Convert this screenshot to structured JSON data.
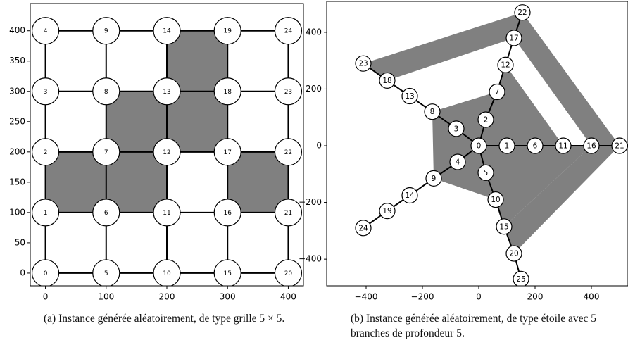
{
  "chart_data": [
    {
      "type": "graph",
      "caption": "(a) Instance générée aléatoirement, de type grille 5 × 5.",
      "xlim": [
        -25,
        425
      ],
      "ylim": [
        -21,
        445
      ],
      "xticks": [
        0,
        100,
        200,
        300,
        400
      ],
      "yticks": [
        0,
        50,
        100,
        150,
        200,
        250,
        300,
        350,
        400
      ],
      "node_color": "#ffffff",
      "edge_color": "#000000",
      "fill_color": "#808080",
      "nodes": [
        {
          "label": "0",
          "x": 0,
          "y": 0
        },
        {
          "label": "1",
          "x": 0,
          "y": 100
        },
        {
          "label": "2",
          "x": 0,
          "y": 200
        },
        {
          "label": "3",
          "x": 0,
          "y": 300
        },
        {
          "label": "4",
          "x": 0,
          "y": 400
        },
        {
          "label": "5",
          "x": 100,
          "y": 0
        },
        {
          "label": "6",
          "x": 100,
          "y": 100
        },
        {
          "label": "7",
          "x": 100,
          "y": 200
        },
        {
          "label": "8",
          "x": 100,
          "y": 300
        },
        {
          "label": "9",
          "x": 100,
          "y": 400
        },
        {
          "label": "10",
          "x": 200,
          "y": 0
        },
        {
          "label": "11",
          "x": 200,
          "y": 100
        },
        {
          "label": "12",
          "x": 200,
          "y": 200
        },
        {
          "label": "13",
          "x": 200,
          "y": 300
        },
        {
          "label": "14",
          "x": 200,
          "y": 400
        },
        {
          "label": "15",
          "x": 300,
          "y": 0
        },
        {
          "label": "16",
          "x": 300,
          "y": 100
        },
        {
          "label": "17",
          "x": 300,
          "y": 200
        },
        {
          "label": "18",
          "x": 300,
          "y": 300
        },
        {
          "label": "19",
          "x": 300,
          "y": 400
        },
        {
          "label": "20",
          "x": 400,
          "y": 0
        },
        {
          "label": "21",
          "x": 400,
          "y": 100
        },
        {
          "label": "22",
          "x": 400,
          "y": 200
        },
        {
          "label": "23",
          "x": 400,
          "y": 300
        },
        {
          "label": "24",
          "x": 400,
          "y": 400
        }
      ],
      "edges": [
        [
          0,
          1
        ],
        [
          1,
          2
        ],
        [
          2,
          3
        ],
        [
          3,
          4
        ],
        [
          5,
          6
        ],
        [
          6,
          7
        ],
        [
          7,
          8
        ],
        [
          8,
          9
        ],
        [
          10,
          11
        ],
        [
          11,
          12
        ],
        [
          12,
          13
        ],
        [
          13,
          14
        ],
        [
          15,
          16
        ],
        [
          16,
          17
        ],
        [
          17,
          18
        ],
        [
          18,
          19
        ],
        [
          20,
          21
        ],
        [
          21,
          22
        ],
        [
          22,
          23
        ],
        [
          23,
          24
        ],
        [
          0,
          5
        ],
        [
          5,
          10
        ],
        [
          10,
          15
        ],
        [
          15,
          20
        ],
        [
          1,
          6
        ],
        [
          6,
          11
        ],
        [
          11,
          16
        ],
        [
          16,
          21
        ],
        [
          2,
          7
        ],
        [
          7,
          12
        ],
        [
          12,
          17
        ],
        [
          17,
          22
        ],
        [
          3,
          8
        ],
        [
          8,
          13
        ],
        [
          13,
          18
        ],
        [
          18,
          23
        ],
        [
          4,
          9
        ],
        [
          9,
          14
        ],
        [
          14,
          19
        ],
        [
          19,
          24
        ]
      ],
      "regions": [
        [
          [
            [
              0,
              100
            ],
            [
              200,
              100
            ],
            [
              200,
              200
            ],
            [
              0,
              200
            ]
          ]
        ],
        [
          [
            [
              100,
              200
            ],
            [
              300,
              200
            ],
            [
              300,
              300
            ],
            [
              100,
              300
            ]
          ]
        ],
        [
          [
            [
              200,
              300
            ],
            [
              300,
              300
            ],
            [
              300,
              400
            ],
            [
              200,
              400
            ]
          ]
        ],
        [
          [
            [
              300,
              100
            ],
            [
              400,
              100
            ],
            [
              400,
              200
            ],
            [
              300,
              200
            ]
          ]
        ]
      ]
    },
    {
      "type": "graph",
      "caption": "(b) Instance générée aléatoirement, de type étoile avec 5 branches de profondeur 5.",
      "xlim": [
        -540,
        530
      ],
      "ylim": [
        -494,
        509
      ],
      "xticks": [
        {
          "value": -400,
          "label": "−400"
        },
        {
          "value": -200,
          "label": "−200"
        },
        0,
        200,
        400
      ],
      "yticks": [
        {
          "value": -400,
          "label": "−400"
        },
        {
          "value": -200,
          "label": "−200"
        },
        0,
        200,
        400
      ],
      "node_color": "#ffffff",
      "edge_color": "#000000",
      "fill_color": "#808080",
      "nodes": [
        {
          "label": "0",
          "x": 0,
          "y": 0
        },
        {
          "label": "1",
          "x": 100,
          "y": 0
        },
        {
          "label": "2",
          "x": 25,
          "y": 92
        },
        {
          "label": "3",
          "x": -80,
          "y": 60
        },
        {
          "label": "4",
          "x": -75,
          "y": -57
        },
        {
          "label": "5",
          "x": 25,
          "y": -95
        },
        {
          "label": "6",
          "x": 200,
          "y": 0
        },
        {
          "label": "7",
          "x": 65,
          "y": 190
        },
        {
          "label": "8",
          "x": -165,
          "y": 120
        },
        {
          "label": "9",
          "x": -160,
          "y": -115
        },
        {
          "label": "10",
          "x": 60,
          "y": -190
        },
        {
          "label": "11",
          "x": 300,
          "y": 0
        },
        {
          "label": "12",
          "x": 95,
          "y": 285
        },
        {
          "label": "13",
          "x": -245,
          "y": 175
        },
        {
          "label": "14",
          "x": -245,
          "y": -175
        },
        {
          "label": "15",
          "x": 90,
          "y": -285
        },
        {
          "label": "16",
          "x": 400,
          "y": 0
        },
        {
          "label": "17",
          "x": 125,
          "y": 380
        },
        {
          "label": "18",
          "x": -325,
          "y": 230
        },
        {
          "label": "19",
          "x": -325,
          "y": -230
        },
        {
          "label": "20",
          "x": 125,
          "y": -380
        },
        {
          "label": "21",
          "x": 500,
          "y": 0
        },
        {
          "label": "22",
          "x": 155,
          "y": 470
        },
        {
          "label": "23",
          "x": -410,
          "y": 290
        },
        {
          "label": "24",
          "x": -410,
          "y": -290
        },
        {
          "label": "25",
          "x": 150,
          "y": -470
        }
      ],
      "edges": [
        [
          0,
          1
        ],
        [
          0,
          2
        ],
        [
          0,
          3
        ],
        [
          0,
          4
        ],
        [
          0,
          5
        ],
        [
          1,
          6
        ],
        [
          6,
          11
        ],
        [
          11,
          16
        ],
        [
          16,
          21
        ],
        [
          2,
          7
        ],
        [
          7,
          12
        ],
        [
          12,
          17
        ],
        [
          17,
          22
        ],
        [
          3,
          8
        ],
        [
          8,
          13
        ],
        [
          13,
          18
        ],
        [
          18,
          23
        ],
        [
          4,
          9
        ],
        [
          9,
          14
        ],
        [
          14,
          19
        ],
        [
          19,
          24
        ],
        [
          5,
          10
        ],
        [
          10,
          15
        ],
        [
          15,
          20
        ],
        [
          20,
          25
        ]
      ],
      "regions": [
        [
          [
            [
              -410,
              290
            ],
            [
              155,
              470
            ],
            [
              500,
              0
            ],
            [
              125,
              -380
            ],
            [
              90,
              -285
            ],
            [
              -245,
              -175
            ],
            [
              -245,
              175
            ],
            [
              -325,
              230
            ]
          ],
          [
            [
              -325,
              230
            ],
            [
              125,
              380
            ],
            [
              400,
              0
            ],
            [
              90,
              -285
            ],
            [
              -245,
              -175
            ],
            [
              -245,
              175
            ]
          ]
        ],
        [
          [
            [
              -245,
              175
            ],
            [
              -245,
              -175
            ],
            [
              90,
              -285
            ],
            [
              60,
              -190
            ],
            [
              -160,
              -115
            ],
            [
              -165,
              120
            ],
            [
              65,
              190
            ],
            [
              95,
              285
            ],
            [
              300,
              0
            ],
            [
              400,
              0
            ],
            [
              90,
              -285
            ],
            [
              -245,
              -175
            ]
          ]
        ],
        [
          [
            [
              -165,
              120
            ],
            [
              65,
              190
            ],
            [
              95,
              285
            ],
            [
              300,
              0
            ],
            [
              200,
              0
            ],
            [
              60,
              -190
            ],
            [
              -160,
              -115
            ],
            [
              -80,
              60
            ]
          ],
          [
            [
              -80,
              60
            ],
            [
              25,
              92
            ],
            [
              200,
              0
            ],
            [
              60,
              -190
            ],
            [
              -75,
              -57
            ],
            [
              -80,
              60
            ]
          ]
        ]
      ]
    }
  ]
}
